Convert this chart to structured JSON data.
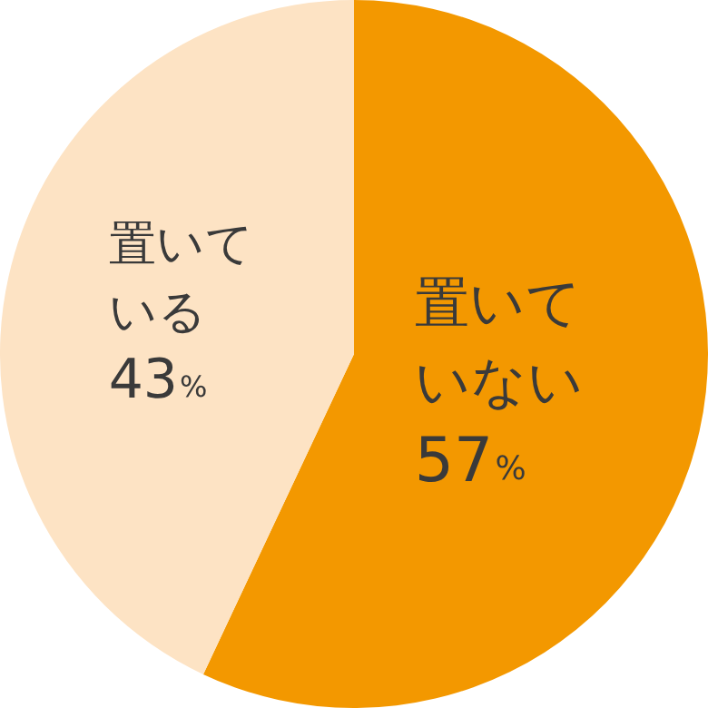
{
  "chart_data": {
    "type": "pie",
    "categories": [
      "置いていない",
      "置いている"
    ],
    "values": [
      57,
      43
    ],
    "colors": [
      "#f39800",
      "#fde3c4"
    ],
    "value_labels": [
      "57%",
      "43%"
    ],
    "legend": false
  }
}
